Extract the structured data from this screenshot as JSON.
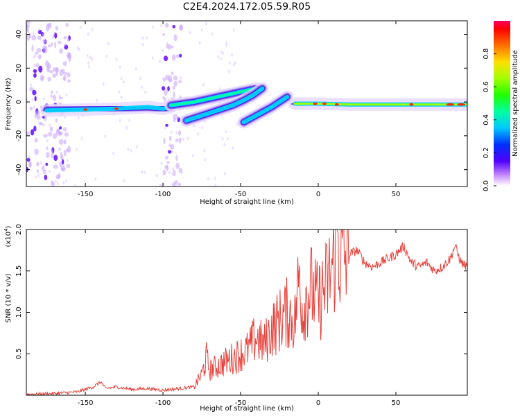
{
  "figure_title": "C2E4.2024.172.05.59.R05",
  "chart_data": [
    {
      "type": "heatmap",
      "xlabel": "Height of straight line (km)",
      "ylabel": "Frequency (Hz)",
      "xlim": [
        -188,
        96
      ],
      "ylim": [
        -50,
        48
      ],
      "x_ticks": [
        -150,
        -100,
        -50,
        0,
        50
      ],
      "y_ticks": [
        -40,
        -20,
        0,
        20,
        40
      ],
      "colorbar": {
        "label": "Normalized spectral amplitude",
        "range": [
          0,
          1
        ],
        "ticks": [
          0.0,
          0.2,
          0.4,
          0.6,
          0.8
        ]
      },
      "tracks": [
        {
          "x": [
            -175,
            -150,
            -130,
            -110,
            -100,
            -95
          ],
          "y": [
            -5,
            -4.5,
            -4,
            -3,
            -4,
            -3
          ],
          "amplitude": 0.35
        },
        {
          "x": [
            -95,
            -80,
            -70,
            -60,
            -50,
            -45,
            -40
          ],
          "y": [
            -2,
            0,
            2,
            4,
            6,
            7,
            8
          ],
          "amplitude": 0.4
        },
        {
          "x": [
            -85,
            -75,
            -65,
            -55,
            -48,
            -42,
            -36
          ],
          "y": [
            -11,
            -8,
            -5,
            -2,
            1,
            4,
            8
          ],
          "amplitude": 0.35
        },
        {
          "x": [
            -48,
            -42,
            -36,
            -30,
            -25,
            -20
          ],
          "y": [
            -12,
            -9,
            -6,
            -3,
            0,
            3
          ],
          "amplitude": 0.3
        },
        {
          "x": [
            -15,
            0,
            20,
            40,
            60,
            80,
            96
          ],
          "y": [
            -1,
            -1,
            -1.5,
            -1.5,
            -1.5,
            -1.5,
            -1.5
          ],
          "amplitude": 0.6
        }
      ],
      "noise_bands_x": [
        [
          -188,
          -160
        ],
        [
          -100,
          -88
        ]
      ]
    },
    {
      "type": "line",
      "xlabel": "Height of straight line (km)",
      "ylabel": "SNR (10 * v/v)",
      "y_scale_label": "(x10^4)",
      "y_scale_base": "(x10",
      "y_scale_exp": "4",
      "y_scale_close": ")",
      "xlim": [
        -188,
        96
      ],
      "ylim": [
        0,
        2.0
      ],
      "x_ticks": [
        -150,
        -100,
        -50,
        0,
        50
      ],
      "y_ticks": [
        0.5,
        1.0,
        1.5,
        2.0
      ],
      "y_tick_labels": [
        "0.5",
        "1.0",
        "1.5",
        "2.0"
      ],
      "color": "#e8403a",
      "series": [
        {
          "x": [
            -188,
            -170,
            -155,
            -145,
            -140,
            -137,
            -130,
            -120,
            -110,
            -100,
            -90,
            -80,
            -75,
            -72,
            -70,
            -65,
            -60,
            -55,
            -50,
            -45,
            -40,
            -35,
            -30,
            -25,
            -20,
            -15,
            -12,
            -10,
            -8,
            -5,
            0,
            3,
            6,
            8,
            10,
            12,
            14,
            16,
            18,
            20,
            25,
            30,
            35,
            40,
            45,
            50,
            55,
            60,
            65,
            70,
            75,
            80,
            85,
            88,
            90,
            92,
            96
          ],
          "y": [
            0.01,
            0.02,
            0.04,
            0.1,
            0.16,
            0.08,
            0.1,
            0.07,
            0.08,
            0.06,
            0.08,
            0.1,
            0.25,
            0.45,
            0.3,
            0.35,
            0.4,
            0.45,
            0.5,
            0.55,
            0.7,
            0.6,
            0.8,
            0.9,
            1.0,
            0.9,
            1.5,
            1.0,
            1.2,
            1.3,
            1.1,
            1.25,
            1.35,
            1.5,
            1.6,
            2.0,
            1.65,
            1.7,
            1.6,
            1.7,
            1.75,
            1.6,
            1.55,
            1.6,
            1.65,
            1.7,
            1.8,
            1.6,
            1.55,
            1.6,
            1.5,
            1.55,
            1.65,
            1.8,
            1.7,
            1.6,
            1.55
          ]
        }
      ]
    }
  ]
}
